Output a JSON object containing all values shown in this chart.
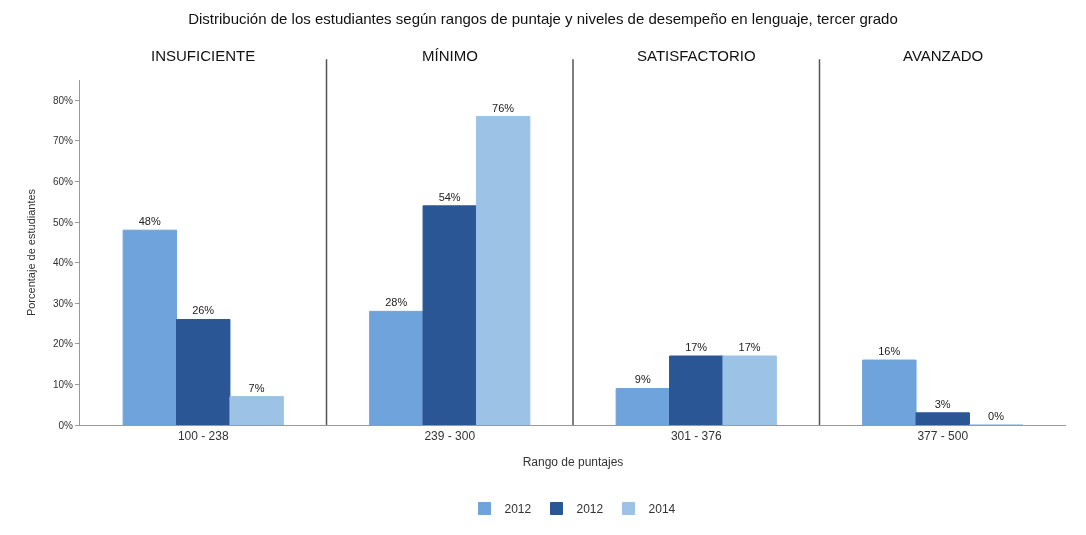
{
  "chart_data": {
    "type": "bar",
    "title": "Distribución de los estudiantes según rangos de puntaje y niveles de desempeño en lenguaje, tercer grado",
    "xlabel": "Rango de puntajes",
    "ylabel": "Porcentaje de estudiantes",
    "annotations": [
      "INSUFICIENTE",
      "MÍNIMO",
      "SATISFACTORIO",
      "AVANZADO"
    ],
    "categories": [
      "100 - 238",
      "239 - 300",
      "301 - 376",
      "377 - 500"
    ],
    "series": [
      {
        "name": "2012",
        "color": "#6fa3db",
        "values": [
          48,
          28,
          9,
          16
        ],
        "value_labels": [
          "48%",
          "28%",
          "9%",
          "16%"
        ]
      },
      {
        "name": "2012",
        "color": "#2b5696",
        "values": [
          26,
          54,
          17,
          3
        ],
        "value_labels": [
          "26%",
          "54%",
          "17%",
          "3%"
        ]
      },
      {
        "name": "2014",
        "color": "#9cc3e6",
        "values": [
          7,
          76,
          17,
          0
        ],
        "value_labels": [
          "7%",
          "76%",
          "17%",
          "0%"
        ]
      }
    ],
    "ylim": [
      0,
      85
    ],
    "yticks": [
      {
        "value": 0,
        "label": "0%"
      },
      {
        "value": 10,
        "label": "10%"
      },
      {
        "value": 20,
        "label": "20%"
      },
      {
        "value": 30,
        "label": "30%"
      },
      {
        "value": 40,
        "label": "40%"
      },
      {
        "value": 50,
        "label": "50%"
      },
      {
        "value": 60,
        "label": "60%"
      },
      {
        "value": 70,
        "label": "70%"
      },
      {
        "value": 80,
        "label": "80%"
      }
    ],
    "grid": "x",
    "legend": "bottom"
  }
}
